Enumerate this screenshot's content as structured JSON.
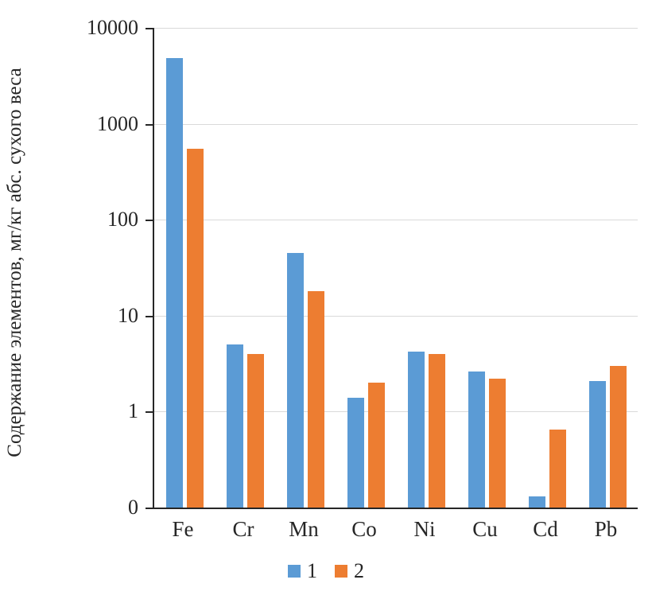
{
  "chart_data": {
    "type": "bar",
    "title": "",
    "xlabel": "",
    "ylabel": "Содержание элементов, мг/кг абс. сухого веса",
    "categories": [
      "Fe",
      "Cr",
      "Mn",
      "Co",
      "Ni",
      "Cu",
      "Cd",
      "Pb"
    ],
    "series": [
      {
        "name": "1",
        "color": "#5B9BD5",
        "values": [
          4800,
          5,
          45,
          1.4,
          4.2,
          2.6,
          0.13,
          2.1
        ]
      },
      {
        "name": "2",
        "color": "#ED7D31",
        "values": [
          550,
          4,
          18,
          2,
          4,
          2.2,
          0.65,
          3
        ]
      }
    ],
    "y_scale": "log",
    "y_min": 0.1,
    "y_max": 10000,
    "y_ticks": [
      {
        "value": 10000,
        "label": "10000"
      },
      {
        "value": 1000,
        "label": "1000"
      },
      {
        "value": 100,
        "label": "100"
      },
      {
        "value": 10,
        "label": "10"
      },
      {
        "value": 1,
        "label": "1"
      },
      {
        "value": 0.1,
        "label": "0"
      }
    ],
    "grid": true,
    "legend_position": "bottom",
    "gridline_color": "#D9D9D9",
    "axis_color": "#262626"
  }
}
